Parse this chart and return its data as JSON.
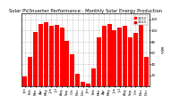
{
  "title": "Solar PV/Inverter Performance - Monthly Solar Energy Production",
  "ylabel": "kWh",
  "background_color": "#ffffff",
  "grid_color": "#bbbbbb",
  "bar_color": "#ff0000",
  "months": [
    "Jan",
    "Feb",
    "Mar",
    "Apr",
    "May",
    "Jun",
    "Jul",
    "Aug",
    "Sep",
    "Oct",
    "Nov",
    "Dec",
    "Jan",
    "Feb",
    "Mar",
    "Apr",
    "May",
    "Jun",
    "Jul",
    "Aug",
    "Sep",
    "Oct",
    "Nov",
    "Dec"
  ],
  "values": [
    18,
    52,
    98,
    112,
    115,
    108,
    110,
    105,
    82,
    58,
    22,
    8,
    5,
    32,
    88,
    108,
    112,
    100,
    105,
    108,
    88,
    95,
    112,
    52
  ],
  "ylim": [
    0,
    130
  ],
  "yticks": [
    20,
    40,
    60,
    80,
    100,
    120
  ],
  "legend_year1": "2012",
  "legend_year2": "2013",
  "title_fontsize": 3.8,
  "axis_fontsize": 3.0,
  "tick_fontsize": 2.8
}
